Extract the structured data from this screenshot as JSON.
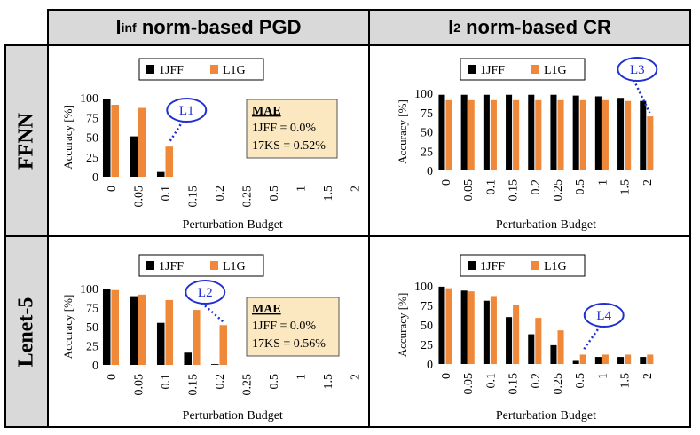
{
  "column_headers": [
    {
      "main": "l",
      "sub": "inf",
      "rest": " norm-based PGD"
    },
    {
      "main": "l",
      "sub": "2",
      "rest": " norm-based CR"
    }
  ],
  "row_headers": [
    "FFNN",
    "Lenet-5"
  ],
  "colors": {
    "series_1JFF": "#000000",
    "series_L1G": "#f0883a",
    "callout": "#1f2fd1",
    "mae_box_fill": "#fbe8c0",
    "header_bg": "#d9d9d9"
  },
  "chart_data": [
    {
      "id": "ffnn-pgd",
      "type": "bar",
      "ylabel": "Accuracy [%]",
      "xlabel": "Perturbation Budget",
      "ylim": [
        0,
        100
      ],
      "yticks": [
        "0",
        "25",
        "50",
        "75",
        "100"
      ],
      "categories": [
        "0",
        "0.05",
        "0.1",
        "0.15",
        "0.2",
        "0.25",
        "0.5",
        "1",
        "1.5",
        "2"
      ],
      "series": [
        {
          "name": "1JFF",
          "values": [
            98,
            51,
            6,
            null,
            null,
            null,
            null,
            null,
            null,
            null
          ]
        },
        {
          "name": "L1G",
          "values": [
            91,
            87,
            38,
            null,
            null,
            null,
            null,
            null,
            null,
            null
          ]
        }
      ],
      "callout": {
        "label": "L1",
        "category_index": 2
      },
      "mae": {
        "title": "MAE",
        "lines": [
          "1JFF = 0.0%",
          "17KS  = 0.52%"
        ]
      }
    },
    {
      "id": "ffnn-cr",
      "type": "bar",
      "ylabel": "Accuracy [%]",
      "xlabel": "Perturbation Budget",
      "ylim": [
        0,
        100
      ],
      "yticks": [
        "0",
        "25",
        "50",
        "75",
        "100"
      ],
      "categories": [
        "0",
        "0.05",
        "0.1",
        "0.15",
        "0.2",
        "0.25",
        "0.5",
        "1",
        "1.5",
        "2"
      ],
      "series": [
        {
          "name": "1JFF",
          "values": [
            98,
            98,
            98,
            98,
            98,
            98,
            97,
            96,
            94,
            90
          ]
        },
        {
          "name": "L1G",
          "values": [
            91,
            91,
            91,
            91,
            91,
            91,
            91,
            91,
            90,
            70
          ]
        }
      ],
      "callout": {
        "label": "L3",
        "category_index": 9
      }
    },
    {
      "id": "lenet-pgd",
      "type": "bar",
      "ylabel": "Accuracy [%]",
      "xlabel": "Perturbation Budget",
      "ylim": [
        0,
        100
      ],
      "yticks": [
        "0",
        "25",
        "50",
        "75",
        "100"
      ],
      "categories": [
        "0",
        "0.05",
        "0.1",
        "0.15",
        "0.2",
        "0.25",
        "0.5",
        "1",
        "1.5",
        "2"
      ],
      "series": [
        {
          "name": "1JFF",
          "values": [
            99,
            90,
            55,
            16,
            1,
            null,
            null,
            null,
            null,
            null
          ]
        },
        {
          "name": "L1G",
          "values": [
            98,
            92,
            85,
            72,
            52,
            null,
            null,
            null,
            null,
            null
          ]
        }
      ],
      "callout": {
        "label": "L2",
        "category_index": 4
      },
      "mae": {
        "title": "MAE",
        "lines": [
          "1JFF = 0.0%",
          "17KS  = 0.56%"
        ]
      }
    },
    {
      "id": "lenet-cr",
      "type": "bar",
      "ylabel": "Accuracy [%]",
      "xlabel": "Perturbation Budget",
      "ylim": [
        0,
        100
      ],
      "yticks": [
        "0",
        "25",
        "50",
        "75",
        "100"
      ],
      "categories": [
        "0",
        "0.05",
        "0.1",
        "0.15",
        "0.2",
        "0.25",
        "0.5",
        "1",
        "1.5",
        "2"
      ],
      "series": [
        {
          "name": "1JFF",
          "values": [
            99,
            94,
            81,
            60,
            38,
            24,
            4,
            9,
            9,
            9
          ]
        },
        {
          "name": "L1G",
          "values": [
            97,
            93,
            87,
            76,
            59,
            43,
            12,
            12,
            12,
            12
          ]
        }
      ],
      "callout": {
        "label": "L4",
        "category_index": 6
      }
    }
  ]
}
